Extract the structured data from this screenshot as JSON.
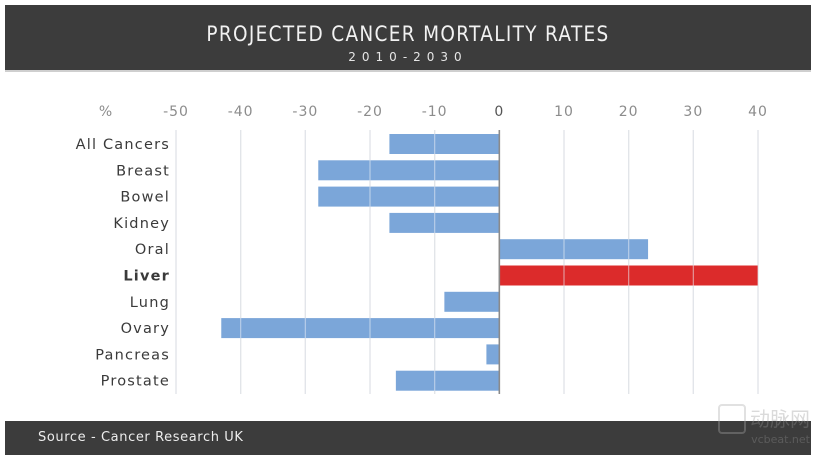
{
  "header": {
    "title": "PROJECTED CANCER MORTALITY RATES",
    "subtitle": "2010-2030"
  },
  "footer": {
    "source": "Source - Cancer Research UK"
  },
  "watermark": {
    "text_cn": "动脉网",
    "text_en": "vcbeat.net"
  },
  "colors": {
    "header_bg": "#3c3c3c",
    "bar_default": "#7ba6d9",
    "bar_highlight": "#dc2b2b",
    "gridline": "#dcdcdc",
    "zero_axis": "#8a8a8a"
  },
  "chart_data": {
    "type": "bar",
    "orientation": "horizontal",
    "title": "PROJECTED CANCER MORTALITY RATES",
    "subtitle": "2010-2030",
    "xlabel": "%",
    "ylabel": "",
    "axis_unit_label": "%",
    "xlim": [
      -50,
      40
    ],
    "xticks": [
      -50,
      -40,
      -30,
      -20,
      -10,
      0,
      10,
      20,
      30,
      40
    ],
    "tick_labels": [
      "-50",
      "-40",
      "-30",
      "-20",
      "-10",
      "0",
      "10",
      "20",
      "30",
      "40"
    ],
    "axis_position": "top",
    "grid": true,
    "legend": "none",
    "categories": [
      "All Cancers",
      "Breast",
      "Bowel",
      "Kidney",
      "Oral",
      "Liver",
      "Lung",
      "Ovary",
      "Pancreas",
      "Prostate"
    ],
    "values": [
      -17,
      -28,
      -28,
      -17,
      23,
      40,
      -8.5,
      -43,
      -2,
      -16
    ],
    "highlight": [
      "Liver"
    ],
    "source": "Source - Cancer Research UK"
  }
}
